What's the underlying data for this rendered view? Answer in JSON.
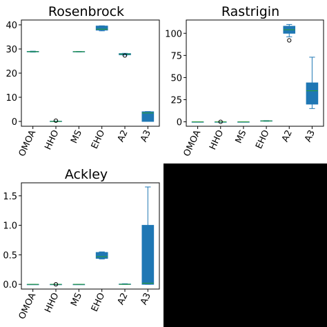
{
  "chart_data": [
    {
      "type": "box",
      "title": "Rosenbrock",
      "categories": [
        "OMOA",
        "HHO",
        "MS",
        "EHO",
        "A2",
        "A3"
      ],
      "ylim": [
        -2,
        42
      ],
      "yticks": [
        0,
        10,
        20,
        30,
        40
      ],
      "grid": false,
      "boxes": [
        {
          "whisker_low": 28.7,
          "q1": 28.8,
          "median": 28.9,
          "q3": 29.0,
          "whisker_high": 29.1,
          "outliers": []
        },
        {
          "whisker_low": 0.0,
          "q1": 0.0,
          "median": 0.0,
          "q3": 0.1,
          "whisker_high": 0.15,
          "outliers": [
            0.3
          ]
        },
        {
          "whisker_low": 28.8,
          "q1": 28.85,
          "median": 28.9,
          "q3": 28.95,
          "whisker_high": 29.0,
          "outliers": []
        },
        {
          "whisker_low": 37.5,
          "q1": 37.8,
          "median": 38.2,
          "q3": 39.5,
          "whisker_high": 39.6,
          "outliers": []
        },
        {
          "whisker_low": 27.5,
          "q1": 27.6,
          "median": 27.9,
          "q3": 28.1,
          "whisker_high": 28.2,
          "outliers": [
            27.3
          ]
        },
        {
          "whisker_low": 0.0,
          "q1": 0.0,
          "median": 3.5,
          "q3": 4.0,
          "whisker_high": 4.1,
          "outliers": []
        }
      ]
    },
    {
      "type": "box",
      "title": "Rastrigin",
      "categories": [
        "OMOA",
        "HHO",
        "MS",
        "EHO",
        "A2",
        "A3"
      ],
      "ylim": [
        -5,
        115
      ],
      "yticks": [
        0,
        25,
        50,
        75,
        100
      ],
      "grid": false,
      "boxes": [
        {
          "whisker_low": 0.0,
          "q1": 0.0,
          "median": 0.0,
          "q3": 0.0,
          "whisker_high": 0.0,
          "outliers": []
        },
        {
          "whisker_low": 0.0,
          "q1": 0.0,
          "median": 0.0,
          "q3": 0.0,
          "whisker_high": 0.0,
          "outliers": [
            0.0
          ]
        },
        {
          "whisker_low": 0.0,
          "q1": 0.0,
          "median": 0.0,
          "q3": 0.0,
          "whisker_high": 0.0,
          "outliers": []
        },
        {
          "whisker_low": 0.6,
          "q1": 0.8,
          "median": 1.0,
          "q3": 1.2,
          "whisker_high": 1.4,
          "outliers": []
        },
        {
          "whisker_low": 96.0,
          "q1": 100.0,
          "median": 104.0,
          "q3": 108.0,
          "whisker_high": 110.0,
          "outliers": [
            92.0
          ]
        },
        {
          "whisker_low": 15.0,
          "q1": 20.0,
          "median": 35.0,
          "q3": 44.0,
          "whisker_high": 73.0,
          "outliers": []
        }
      ]
    },
    {
      "type": "box",
      "title": "Ackley",
      "categories": [
        "OMOA",
        "HHO",
        "MS",
        "EHO",
        "A2",
        "A3"
      ],
      "ylim": [
        -0.08,
        1.72
      ],
      "yticks": [
        0.0,
        0.5,
        1.0,
        1.5
      ],
      "ytick_labels": [
        "0.0",
        "0.5",
        "1.0",
        "1.5"
      ],
      "grid": false,
      "boxes": [
        {
          "whisker_low": 0.0,
          "q1": 0.0,
          "median": 0.0,
          "q3": 0.0,
          "whisker_high": 0.0,
          "outliers": []
        },
        {
          "whisker_low": 0.0,
          "q1": 0.0,
          "median": 0.0,
          "q3": 0.0,
          "whisker_high": 0.0,
          "outliers": [
            0.0
          ]
        },
        {
          "whisker_low": 0.0,
          "q1": 0.0,
          "median": 0.0,
          "q3": 0.0,
          "whisker_high": 0.0,
          "outliers": []
        },
        {
          "whisker_low": 0.43,
          "q1": 0.44,
          "median": 0.47,
          "q3": 0.54,
          "whisker_high": 0.55,
          "outliers": []
        },
        {
          "whisker_low": 0.0,
          "q1": 0.0,
          "median": 0.0,
          "q3": 0.005,
          "whisker_high": 0.01,
          "outliers": []
        },
        {
          "whisker_low": 0.0,
          "q1": 0.0,
          "median": 0.02,
          "q3": 1.0,
          "whisker_high": 1.65,
          "outliers": []
        }
      ]
    }
  ],
  "colors": {
    "box_fill": "#1f77b4",
    "median": "#2ca02c",
    "axis": "#000000",
    "empty_panel": "#000000"
  }
}
